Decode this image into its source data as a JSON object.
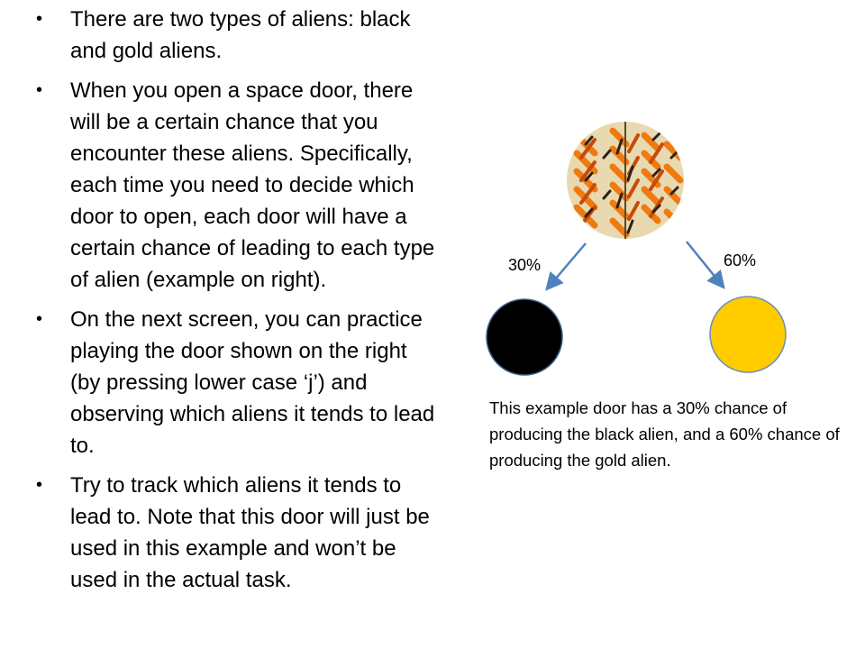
{
  "bullets": [
    "There are two types of aliens: black and gold aliens.",
    "When you open a space door, there will be a certain chance that you encounter these aliens. Specifically, each time you need to decide which door to open, each door will have a certain chance of leading to each type of alien (example on right).",
    "On the next screen, you can practice playing the door shown on the right (by pressing lower case ‘j’) and observing which aliens it tends to lead to.",
    "Try to track which aliens it tends to lead to. Note that this door will just be used in this example and won’t be used in the actual task."
  ],
  "diagram": {
    "door_icon": "patterned-door-icon",
    "left_probability": "30%",
    "right_probability": "60%",
    "black_alien_color": "#000000",
    "gold_alien_color": "#FFCC00",
    "arrow_color": "#4F81BD"
  },
  "caption": "This example door has a 30% chance of producing the black alien, and a 60% chance of producing the gold alien."
}
